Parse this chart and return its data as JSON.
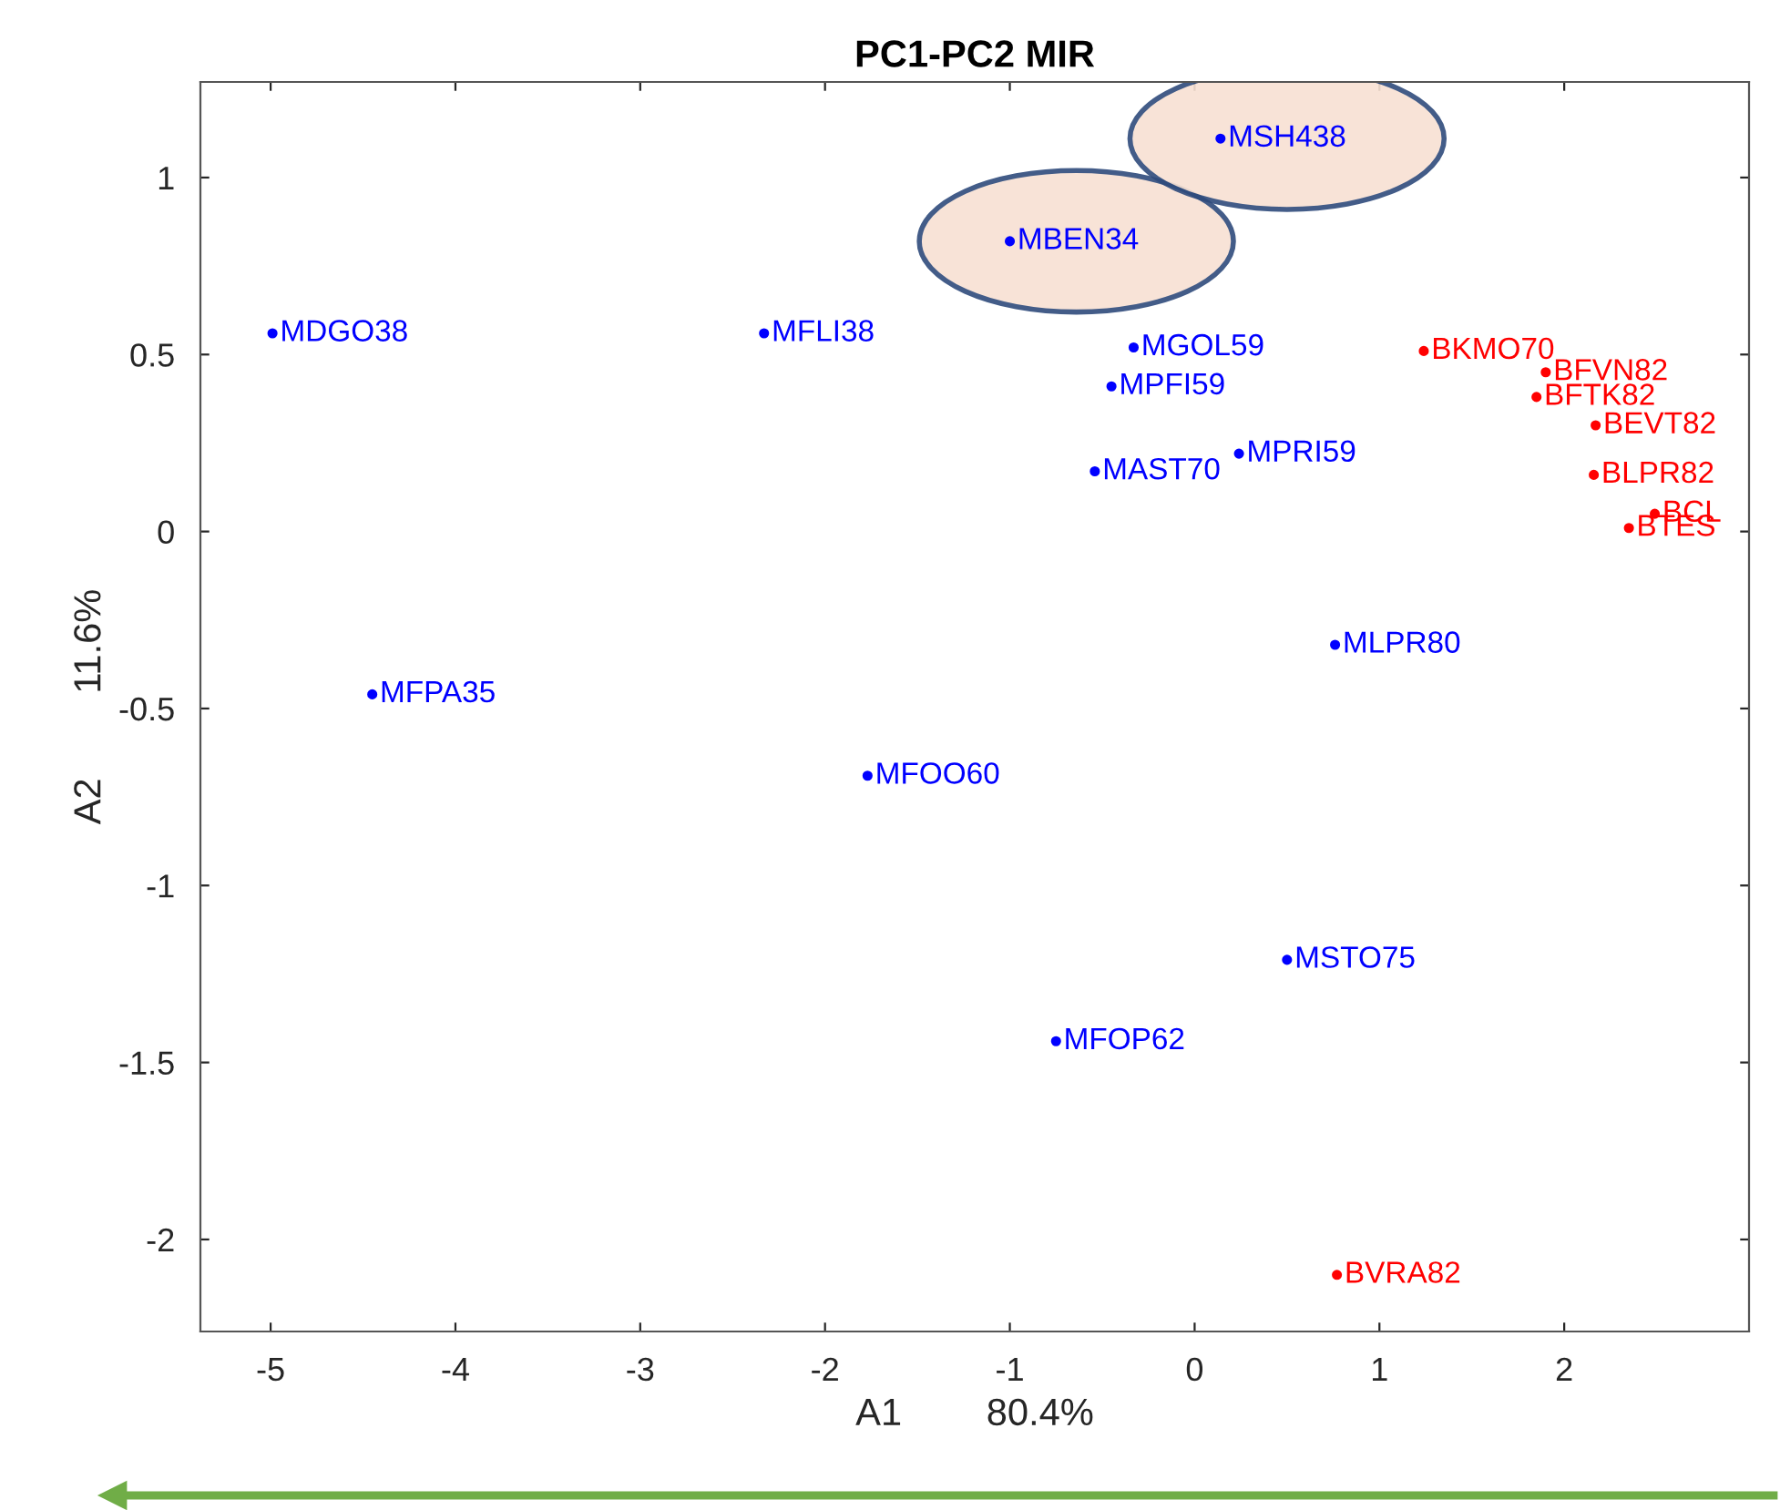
{
  "chart_data": {
    "type": "scatter",
    "title": "PC1-PC2 MIR",
    "xlabel": "A1        80.4%",
    "ylabel": "A2        11.6%",
    "xlim": [
      -5.38,
      3.0
    ],
    "xticks": [
      -5,
      -4,
      -3,
      -2,
      -1,
      0,
      1,
      2
    ],
    "ylim": [
      -2.26,
      1.27
    ],
    "yticks": [
      -2,
      -1.5,
      -1,
      -0.5,
      0,
      0.5,
      1
    ],
    "marker": "circle",
    "grid": false,
    "series": [
      {
        "color": "#0000ff",
        "x": [
          -4.99,
          -2.33,
          -0.33,
          -0.45,
          -0.54,
          0.24,
          0.76,
          -4.45,
          -1.77,
          0.5,
          -0.75,
          -1.0,
          0.14
        ],
        "values": [
          0.56,
          0.56,
          0.52,
          0.41,
          0.17,
          0.22,
          -0.32,
          -0.46,
          -0.69,
          -1.21,
          -1.44,
          0.82,
          1.11
        ],
        "value_labels": [
          "MDGO38",
          "MFLI38",
          "MGOL59",
          "MPFI59",
          "MAST70",
          "MPRI59",
          "MLPR80",
          "MFPA35",
          "MFOO60",
          "MSTO75",
          "MFOP62",
          "MBEN34",
          "MSH438"
        ]
      },
      {
        "color": "#ff0000",
        "x": [
          1.24,
          1.9,
          1.85,
          2.17,
          2.16,
          2.49,
          2.35,
          0.77
        ],
        "values": [
          0.51,
          0.45,
          0.38,
          0.3,
          0.16,
          0.05,
          0.01,
          -2.1
        ],
        "value_labels": [
          "BKMO70",
          "BFVN82",
          "BFTK82",
          "BEVT82",
          "BLPR82",
          "BCL",
          "BTES",
          "BVRA82"
        ]
      }
    ]
  }
}
